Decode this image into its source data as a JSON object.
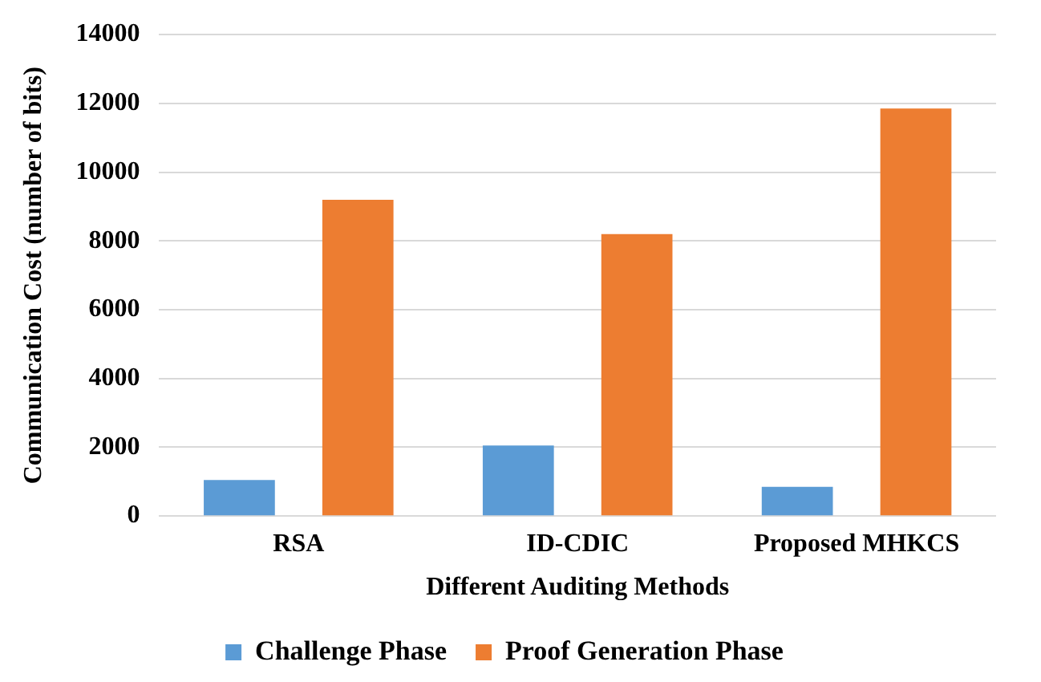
{
  "chart_data": {
    "type": "bar",
    "xlabel": "Different Auditing Methods",
    "ylabel": "Communication Cost (number of bits)",
    "categories": [
      "RSA",
      "ID-CDIC",
      "Proposed MHKCS"
    ],
    "series": [
      {
        "name": "Challenge Phase",
        "color": "#5b9bd5",
        "values": [
          1050,
          2050,
          850
        ]
      },
      {
        "name": "Proof Generation Phase",
        "color": "#ed7d31",
        "values": [
          9200,
          8200,
          11850
        ]
      }
    ],
    "ylim": [
      0,
      14000
    ],
    "yticks": [
      0,
      2000,
      4000,
      6000,
      8000,
      10000,
      12000,
      14000
    ],
    "grid": "y",
    "legend": "bottom"
  }
}
